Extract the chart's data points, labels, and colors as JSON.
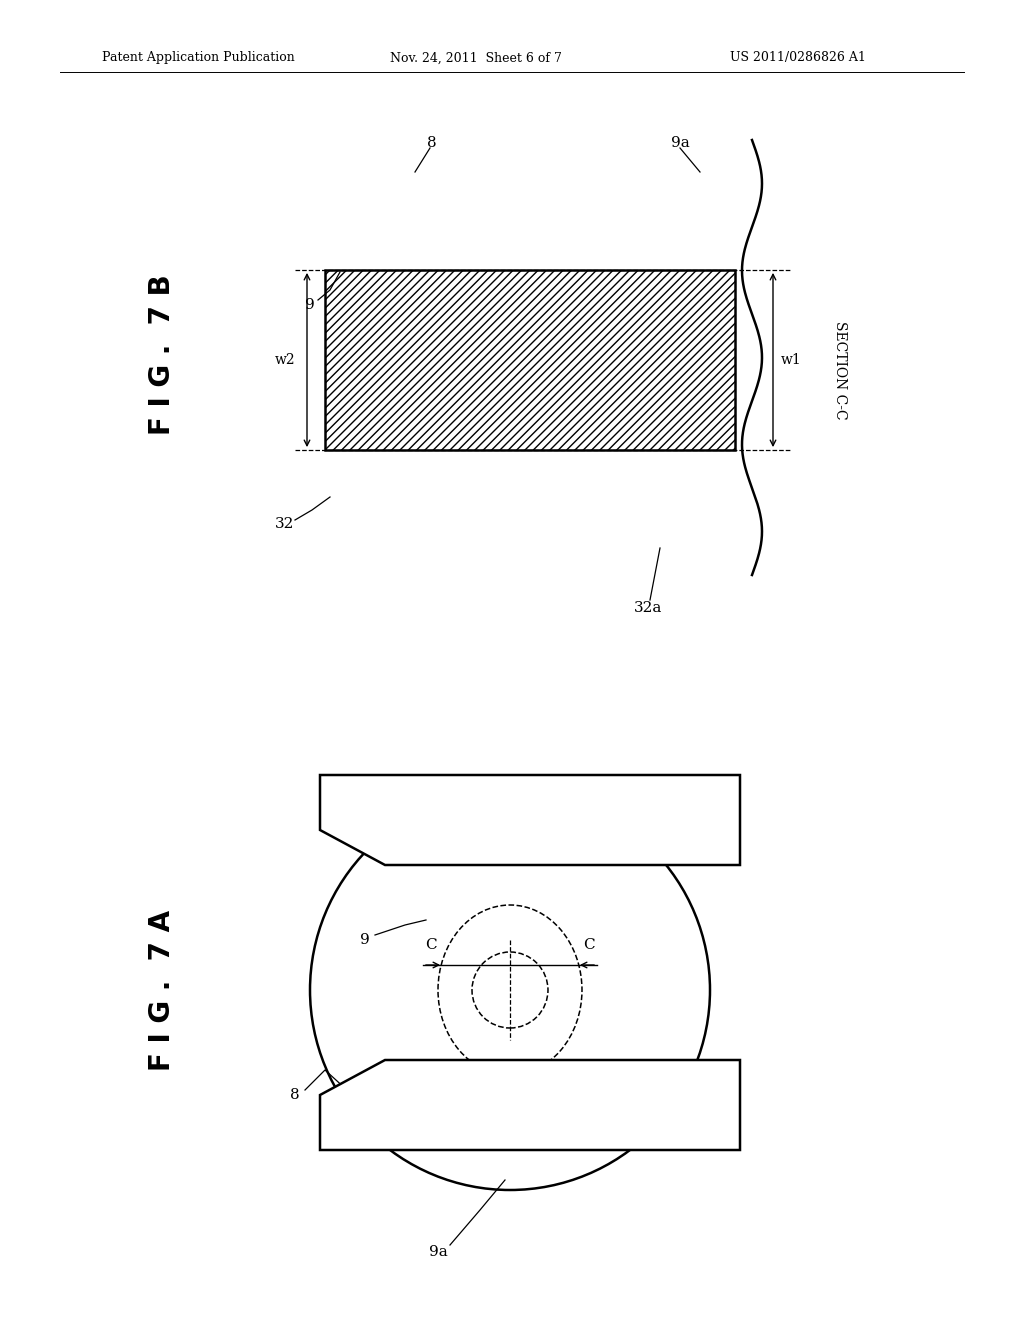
{
  "background_color": "#ffffff",
  "header_text": "Patent Application Publication",
  "header_date": "Nov. 24, 2011  Sheet 6 of 7",
  "header_patent": "US 2011/0286826 A1",
  "fig7b_label": "F I G .  7 B",
  "fig7a_label": "F I G .  7 A",
  "section_label": "SECTION C-C"
}
